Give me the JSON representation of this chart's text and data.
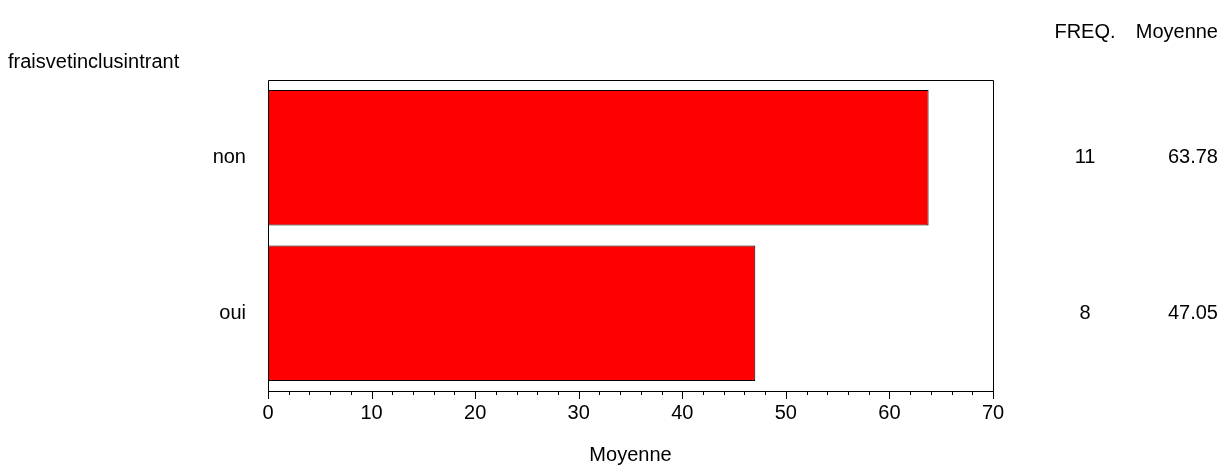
{
  "chart_data": {
    "type": "bar",
    "orientation": "horizontal",
    "ylabel": "fraisvetinclusintrant",
    "xlabel": "Moyenne",
    "categories": [
      "non",
      "oui"
    ],
    "values": [
      63.78,
      47.05
    ],
    "color": "#ff0000",
    "data_labels": true,
    "grid": false,
    "legend": false,
    "xlim": [
      0,
      70
    ],
    "xticks": [
      0,
      {
        "value": 2,
        "label": null
      },
      {
        "value": 4,
        "label": null
      },
      {
        "value": 6,
        "label": null
      },
      {
        "value": 8,
        "label": null
      },
      10,
      {
        "value": 12,
        "label": null
      },
      {
        "value": 14,
        "label": null
      },
      {
        "value": 16,
        "label": null
      },
      {
        "value": 18,
        "label": null
      },
      20,
      {
        "value": 22,
        "label": null
      },
      {
        "value": 24,
        "label": null
      },
      {
        "value": 26,
        "label": null
      },
      {
        "value": 28,
        "label": null
      },
      30,
      {
        "value": 32,
        "label": null
      },
      {
        "value": 34,
        "label": null
      },
      {
        "value": 36,
        "label": null
      },
      {
        "value": 38,
        "label": null
      },
      40,
      {
        "value": 42,
        "label": null
      },
      {
        "value": 44,
        "label": null
      },
      {
        "value": 46,
        "label": null
      },
      {
        "value": 48,
        "label": null
      },
      50,
      {
        "value": 52,
        "label": null
      },
      {
        "value": 54,
        "label": null
      },
      {
        "value": 56,
        "label": null
      },
      {
        "value": 58,
        "label": null
      },
      60,
      {
        "value": 62,
        "label": null
      },
      {
        "value": 64,
        "label": null
      },
      {
        "value": 66,
        "label": null
      },
      {
        "value": 68,
        "label": null
      },
      70
    ],
    "annotations": [
      "FREQ.",
      "Moyenne",
      "11",
      "8"
    ]
  }
}
